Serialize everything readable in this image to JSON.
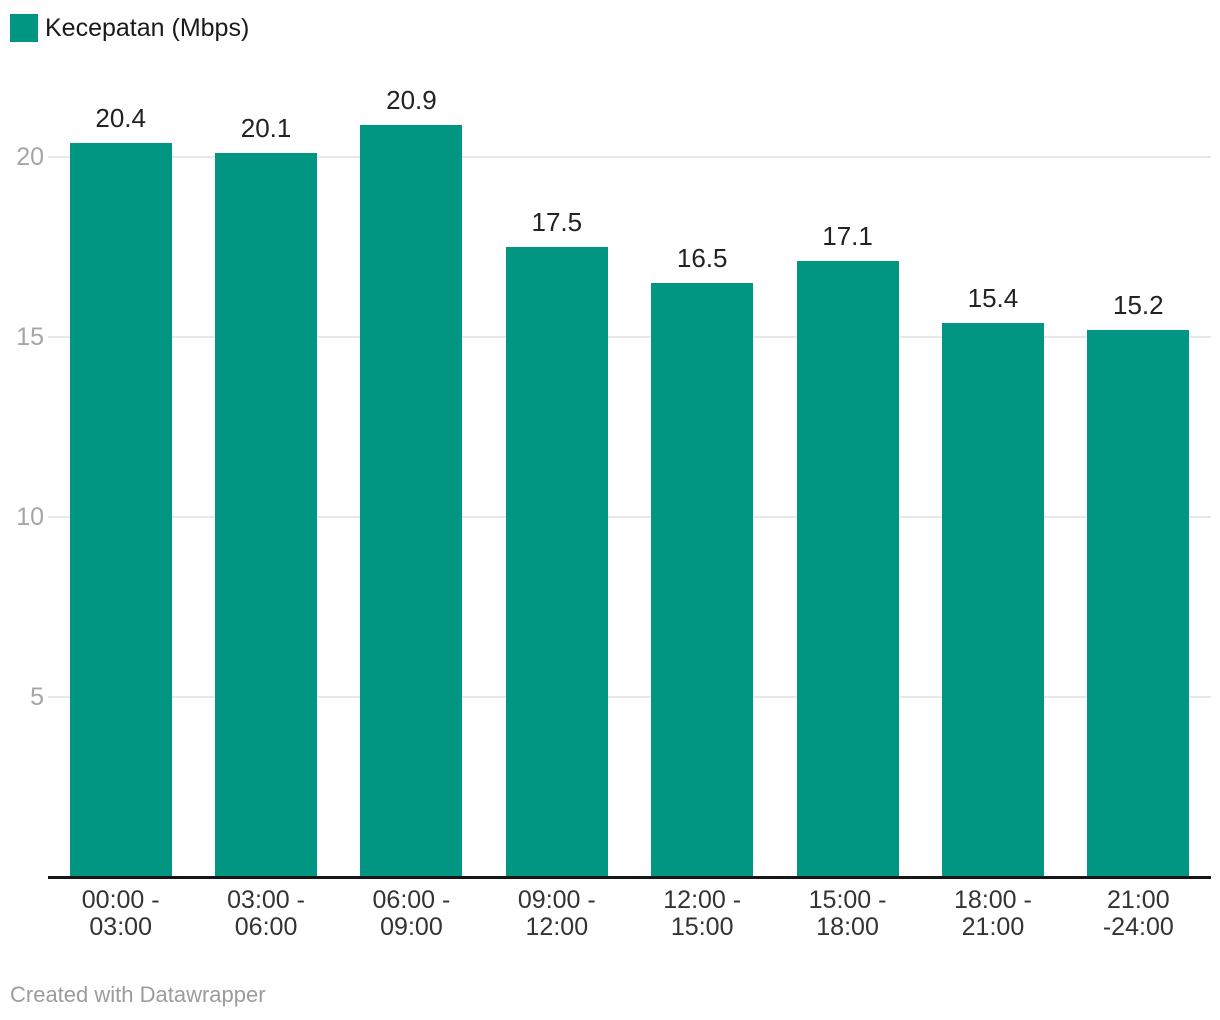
{
  "legend": {
    "label": "Kecepatan (Mbps)"
  },
  "chart_data": {
    "type": "bar",
    "title": "",
    "xlabel": "",
    "ylabel": "",
    "series_name": "Kecepatan (Mbps)",
    "categories": [
      "00:00 -\n03:00",
      "03:00 -\n06:00",
      "06:00 -\n09:00",
      "09:00 -\n12:00",
      "12:00 -\n15:00",
      "15:00 -\n18:00",
      "18:00 -\n21:00",
      "21:00\n-24:00"
    ],
    "values": [
      20.4,
      20.1,
      20.9,
      17.5,
      16.5,
      17.1,
      15.4,
      15.2
    ],
    "value_labels": [
      "20.4",
      "20.1",
      "20.9",
      "17.5",
      "16.5",
      "17.1",
      "15.4",
      "15.2"
    ],
    "yticks": [
      5,
      10,
      15,
      20
    ],
    "ylim": [
      0,
      22
    ],
    "grid": "horizontal",
    "legend_position": "top-left"
  },
  "colors": {
    "bar": "#009682",
    "grid": "#e8e8e8",
    "baseline": "#161616",
    "y_tick": "#a6a6a6",
    "x_tick": "#333333",
    "value_label": "#222222",
    "footer": "#9c9c9c"
  },
  "footer": {
    "text": "Created with Datawrapper"
  }
}
